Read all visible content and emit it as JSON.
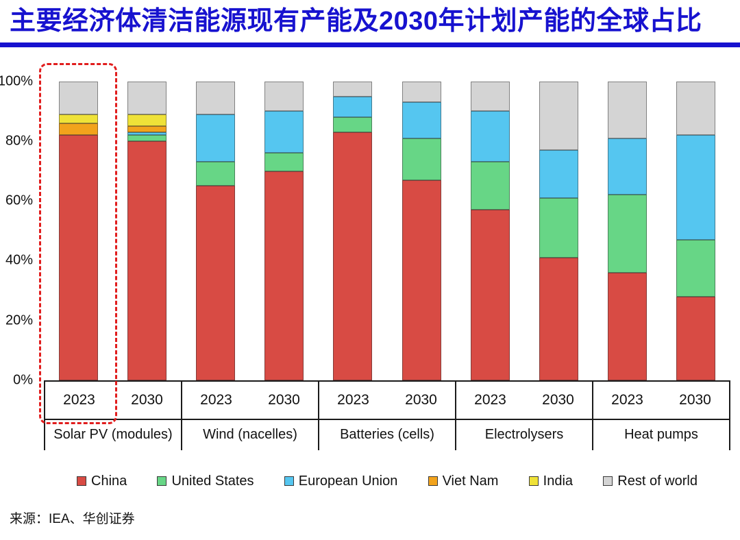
{
  "page_title": "主要经济体清洁能源现有产能及2030年计划产能的全球占比",
  "source_note": "来源：IEA、华创证券",
  "theme": {
    "title_color": "#1712cf",
    "underline_color": "#1712cf",
    "highlight_box_color": "#e11d1d",
    "axis_color": "#1a1a1a"
  },
  "chart_data": {
    "type": "bar",
    "stacked": true,
    "title": "主要经济体清洁能源现有产能及2030年计划产能的全球占比",
    "xlabel": "",
    "ylabel": "",
    "unit": "%",
    "ylim": [
      0,
      100
    ],
    "y_ticks": [
      0,
      20,
      40,
      60,
      80,
      100
    ],
    "grid": false,
    "legend_position": "bottom",
    "series": [
      "China",
      "United States",
      "European Union",
      "Viet Nam",
      "India",
      "Rest of world"
    ],
    "series_colors": [
      "#d84b44",
      "#67d686",
      "#55c6f0",
      "#f2a31c",
      "#efe238",
      "#d4d4d4"
    ],
    "groups": [
      {
        "category": "Solar PV (modules)",
        "bars": [
          {
            "year": "2023",
            "values": [
              82,
              0,
              0,
              4,
              3,
              11
            ]
          },
          {
            "year": "2030",
            "values": [
              80,
              2,
              1,
              2,
              4,
              11
            ]
          }
        ]
      },
      {
        "category": "Wind (nacelles)",
        "bars": [
          {
            "year": "2023",
            "values": [
              65,
              8,
              16,
              0,
              0,
              11
            ]
          },
          {
            "year": "2030",
            "values": [
              70,
              6,
              14,
              0,
              0,
              10
            ]
          }
        ]
      },
      {
        "category": "Batteries (cells)",
        "bars": [
          {
            "year": "2023",
            "values": [
              83,
              5,
              7,
              0,
              0,
              5
            ]
          },
          {
            "year": "2030",
            "values": [
              67,
              14,
              12,
              0,
              0,
              7
            ]
          }
        ]
      },
      {
        "category": "Electrolysers",
        "bars": [
          {
            "year": "2023",
            "values": [
              57,
              16,
              17,
              0,
              0,
              10
            ]
          },
          {
            "year": "2030",
            "values": [
              41,
              20,
              16,
              0,
              0,
              23
            ]
          }
        ]
      },
      {
        "category": "Heat pumps",
        "bars": [
          {
            "year": "2023",
            "values": [
              36,
              26,
              19,
              0,
              0,
              19
            ]
          },
          {
            "year": "2030",
            "values": [
              28,
              19,
              35,
              0,
              0,
              18
            ]
          }
        ]
      }
    ],
    "annotation": {
      "highlight_box": {
        "category": "Solar PV (modules)",
        "year": "2023"
      }
    }
  }
}
